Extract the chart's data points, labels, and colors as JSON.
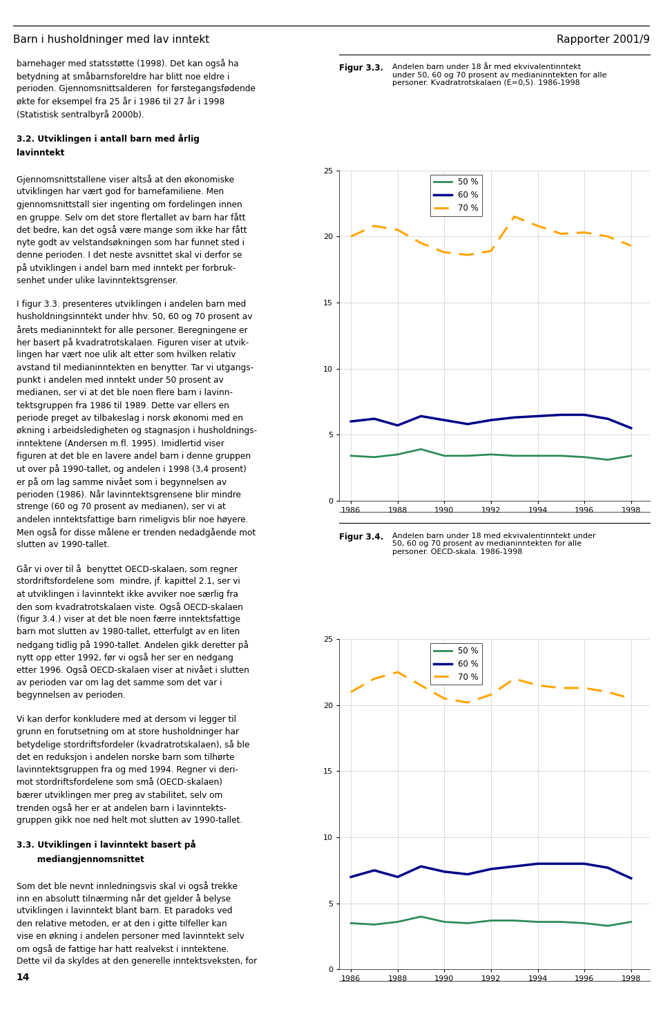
{
  "page_title": "Barn i husholdninger med lav inntekt",
  "page_subtitle": "Rapporter 2001/9",
  "page_number": "14",
  "fig33": {
    "title_label": "Figur 3.3.",
    "title_text": "Andelen barn under 18 år med ekvivalentinntekt\nunder 50, 60 og 70 prosent av medianinntekten for alle\npersoner. Kvadratrotskalaen (E=0,5). 1986-1998",
    "years": [
      1986,
      1987,
      1988,
      1989,
      1990,
      1991,
      1992,
      1993,
      1994,
      1995,
      1996,
      1997,
      1998
    ],
    "line50": [
      3.4,
      3.3,
      3.5,
      3.9,
      3.4,
      3.4,
      3.5,
      3.4,
      3.4,
      3.4,
      3.3,
      3.1,
      3.4
    ],
    "line60": [
      6.0,
      6.2,
      5.7,
      6.4,
      6.1,
      5.8,
      6.1,
      6.3,
      6.4,
      6.5,
      6.5,
      6.2,
      5.5
    ],
    "line70": [
      20.0,
      20.8,
      20.5,
      19.5,
      18.8,
      18.6,
      18.9,
      21.5,
      20.8,
      20.2,
      20.3,
      20.0,
      19.3
    ],
    "color50": "#2e8b57",
    "color60": "#00008b",
    "color70": "#ffa500",
    "ylim": [
      0,
      25
    ],
    "yticks": [
      0,
      5,
      10,
      15,
      20,
      25
    ],
    "xticks": [
      1986,
      1988,
      1990,
      1992,
      1994,
      1996,
      1998
    ]
  },
  "fig34": {
    "title_label": "Figur 3.4.",
    "title_text": "Andelen barn under 18 med ekvivalentinntekt under\n50, 60 og 70 prosent av medianinntekten for alle\npersoner. OECD-skala. 1986-1998",
    "years": [
      1986,
      1987,
      1988,
      1989,
      1990,
      1991,
      1992,
      1993,
      1994,
      1995,
      1996,
      1997,
      1998
    ],
    "line50": [
      3.5,
      3.4,
      3.6,
      4.0,
      3.6,
      3.5,
      3.7,
      3.7,
      3.6,
      3.6,
      3.5,
      3.3,
      3.6
    ],
    "line60": [
      7.0,
      7.5,
      7.0,
      7.8,
      7.4,
      7.2,
      7.6,
      7.8,
      8.0,
      8.0,
      8.0,
      7.7,
      6.9
    ],
    "line70": [
      21.0,
      22.0,
      22.5,
      21.5,
      20.5,
      20.2,
      20.8,
      22.0,
      21.5,
      21.3,
      21.3,
      21.0,
      20.5
    ],
    "color50": "#2e8b57",
    "color60": "#00008b",
    "color70": "#ffa500",
    "ylim": [
      0,
      25
    ],
    "yticks": [
      0,
      5,
      10,
      15,
      20,
      25
    ],
    "xticks": [
      1986,
      1988,
      1990,
      1992,
      1994,
      1996,
      1998
    ]
  },
  "background_color": "#ffffff",
  "grid_color": "#cccccc",
  "left_text": [
    {
      "type": "body",
      "content": "barnehager med statsstøtte (1998). Det kan også ha\nbetydning at småbarnsforeldre har blitt noe eldre i\nperioden. Gjennomsnittsalderen  for førstegangsfødende\nøkte for eksempel fra 25 år i 1986 til 27 år i 1998\n(Statistisk sentralbyrå 2000b)."
    },
    {
      "type": "heading",
      "content": "3.2. Utviklingen i antall barn med årlig\nlavinntekt"
    },
    {
      "type": "body",
      "content": "Gjennomsnittstallene viser altså at den økonomiske\nutviklingen har vært god for barnefamiliene. Men\ngjennomsnittstall sier ingenting om fordelingen innen\nen gruppe. Selv om det store flertallet av barn har fått\ndet bedre, kan det også være mange som ikke har fått\nnyte godt av velstandsøkningen som har funnet sted i\ndenne perioden. I det neste avsnittet skal vi derfor se\npå utviklingen i andel barn med inntekt per forbruk-\nsenhet under ulike lavinntektsgrenser."
    },
    {
      "type": "body",
      "content": "I figur 3.3. presenteres utviklingen i andelen barn med\nhusholdningsinntekt under hhv. 50, 60 og 70 prosent av\nårets medianinntekt for alle personer. Beregningene er\nher basert på kvadratrotskalaen. Figuren viser at utvik-\nlingen har vært noe ulik alt etter som hvilken relativ\navstand til medianinntekten en benytter. Tar vi utgangs-\npunkt i andelen med inntekt under 50 prosent av\nmedianen, ser vi at det ble noen flere barn i lavinn-\ntektsgruppen fra 1986 til 1989. Dette var ellers en\nperiode preget av tilbakeslag i norsk økonomi med en\nøkning i arbeidsledigheten og stagnasjon i husholdnings-\ninntektene (Andersen m.fl. 1995). Imidlertid viser\nfiguren at det ble en lavere andel barn i denne gruppen\nut over på 1990-tallet, og andelen i 1998 (3,4 prosent)\ner på om lag samme nivået som i begynnelsen av\nperioden (1986). Når lavinntektsgrensene blir mindre\nstrenge (60 og 70 prosent av medianen), ser vi at\nandelen inntektsfattige barn rimeligvis blir noe høyere.\nMen også for disse målene er trenden nedadgående mot\nslutten av 1990-tallet."
    },
    {
      "type": "body",
      "content": "Går vi over til å  benyttet OECD-skalaen, som regner\nstordriftsfordelene som  mindre, jf. kapittel 2.1, ser vi\nat utviklingen i lavinntekt ikke avviker noe særlig fra\nden som kvadratrotskalaen viste. Også OECD-skalaen\n(figur 3.4.) viser at det ble noen færre inntektsfattige\nbarn mot slutten av 1980-tallet, etterfulgt av en liten\nnedgang tidlig på 1990-tallet. Andelen gikk deretter på\nnytt opp etter 1992, før vi også her ser en nedgang\netter 1996. Også OECD-skalaen viser at nivået i slutten\nav perioden var om lag det samme som det var i\nbegynnelsen av perioden."
    },
    {
      "type": "body",
      "content": "Vi kan derfor konkludere med at dersom vi legger til\ngrunn en forutsetning om at store husholdninger har\nbetydelige stordriftsfordeler (kvadratrotskalaen), så ble\ndet en reduksjon i andelen norske barn som tilhørte\nlavinntektsgruppen fra og med 1994. Regner vi deri-\nmot stordriftsfordelene som små (OECD-skalaen)\nbærer utviklingen mer preg av stabilitet, selv om\ntrenden også her er at andelen barn i lavinntekts-\ngruppen gikk noe ned helt mot slutten av 1990-tallet."
    },
    {
      "type": "heading",
      "content": "3.3. Utviklingen i lavinntekt basert på\n       mediangjennomsnittet"
    },
    {
      "type": "body",
      "content": "Som det ble nevnt innledningsvis skal vi også trekke\ninn en absolutt tilnærming når det gjelder å belyse\nutviklingen i lavinntekt blant barn. Et paradoks ved\nden relative metoden, er at den i gitte tilfeller kan\nvise en økning i andelen personer med lavinntekt selv\nom også de fattige har hatt realvekst i inntektene.\nDette vil da skyldes at den generelle inntektsveksten, for"
    }
  ]
}
